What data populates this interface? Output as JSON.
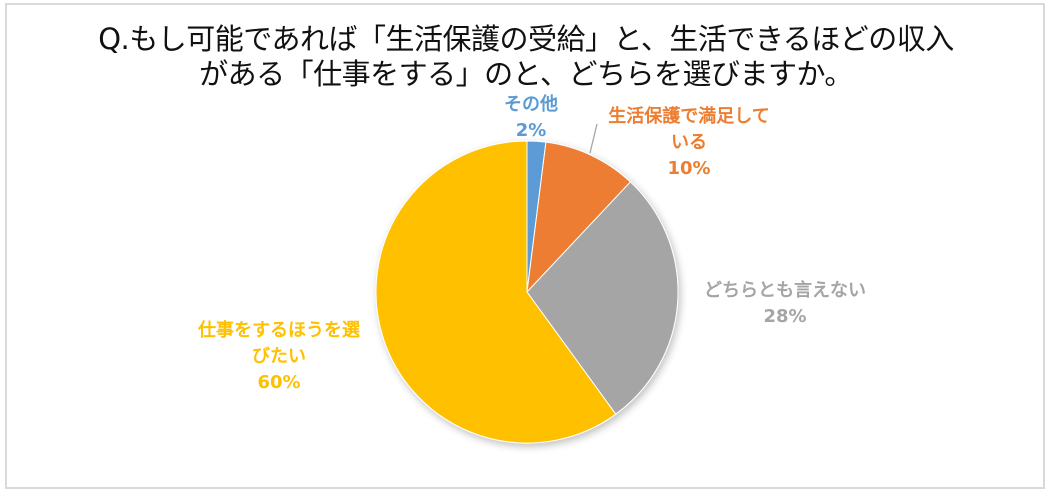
{
  "chart_data": {
    "type": "pie",
    "title": "Q.もし可能であれば「生活保護の受給」と、生活できるほどの収入がある「仕事をする」のと、どちらを選びますか。",
    "title_lines": [
      "Q.もし可能であれば「生活保護の受給」と、生活できるほどの収入",
      "がある「仕事をする」のと、どちらを選びますか。"
    ],
    "start_angle_deg": 0,
    "direction": "clockwise",
    "legend": "none",
    "data_labels": "category name and percentage",
    "categories": [
      "その他",
      "生活保護で満足している",
      "どちらとも言えない",
      "仕事をするほうを選びたい"
    ],
    "values": [
      2,
      10,
      28,
      60
    ],
    "unit": "%",
    "colors": [
      "#5b9bd5",
      "#ed7d31",
      "#a5a5a5",
      "#ffc000"
    ],
    "slices": [
      {
        "label": "その他",
        "value": 2,
        "value_label": "2%",
        "color": "#5b9bd5",
        "label_lines": [
          "その他",
          "2%"
        ]
      },
      {
        "label": "生活保護で満足している",
        "value": 10,
        "value_label": "10%",
        "color": "#ed7d31",
        "label_lines": [
          "生活保護で満足して",
          "いる",
          "10%"
        ]
      },
      {
        "label": "どちらとも言えない",
        "value": 28,
        "value_label": "28%",
        "color": "#a5a5a5",
        "label_lines": [
          "どちらとも言えない",
          "28%"
        ]
      },
      {
        "label": "仕事をするほうを選びたい",
        "value": 60,
        "value_label": "60%",
        "color": "#ffc000",
        "label_lines": [
          "仕事をするほうを選",
          "びたい",
          "60%"
        ]
      }
    ]
  }
}
